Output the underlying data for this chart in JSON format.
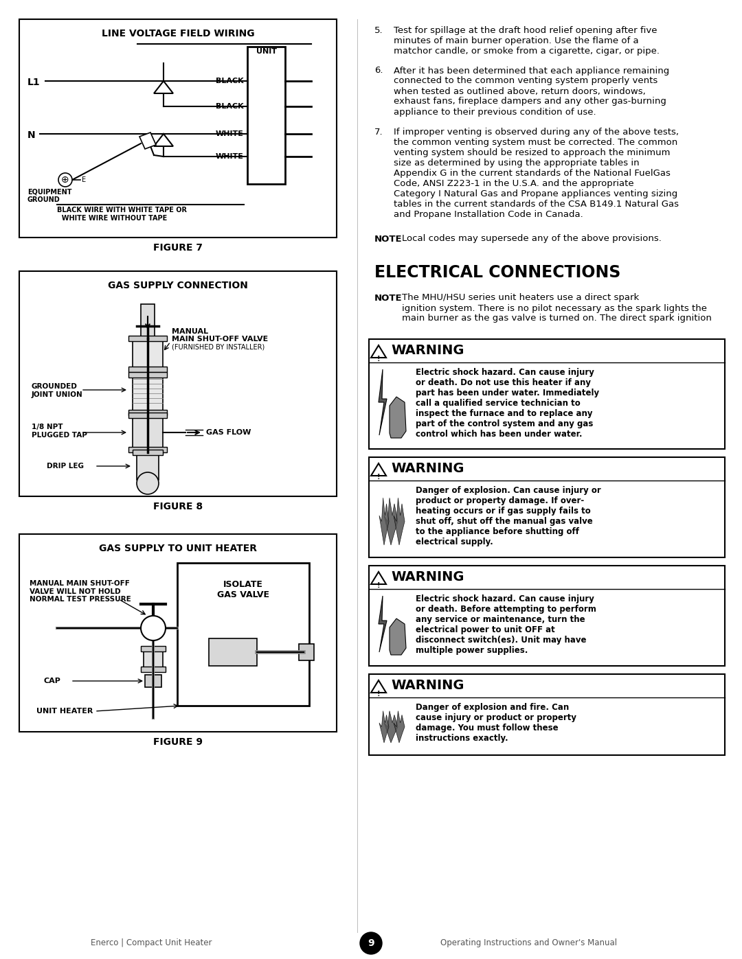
{
  "page_bg": "#ffffff",
  "page_width": 10.8,
  "page_height": 13.97,
  "fig7_title": "LINE VOLTAGE FIELD WIRING",
  "fig7_caption": "FIGURE 7",
  "fig8_title": "GAS SUPPLY CONNECTION",
  "fig8_caption": "FIGURE 8",
  "fig9_title": "GAS SUPPLY TO UNIT HEATER",
  "fig9_caption": "FIGURE 9",
  "electrical_connections_title": "ELECTRICAL CONNECTIONS",
  "footer_left": "Enerco | Compact Unit Heater",
  "footer_page": "9",
  "footer_right": "Operating Instructions and Owner's Manual",
  "items": [
    {
      "num": "5.",
      "text": "Test for spillage at the draft hood relief opening after five\nminutes of main burner operation. Use the flame of a\nmatchor candle, or smoke from a cigarette, cigar, or pipe."
    },
    {
      "num": "6.",
      "text": "After it has been determined that each appliance remaining\nconnected to the common venting system properly vents\nwhen tested as outlined above, return doors, windows,\nexhaust fans, fireplace dampers and any other gas-burning\nappliance to their previous condition of use."
    },
    {
      "num": "7.",
      "text": "If improper venting is observed during any of the above tests,\nthe common venting system must be corrected. The common\nventing system should be resized to approach the minimum\nsize as determined by using the appropriate tables in\nAppendix G in the current standards of the National FuelGas\nCode, ANSI Z223-1 in the U.S.A. and the appropriate\nCategory I Natural Gas and Propane appliances venting sizing\ntables in the current standards of the CSA B149.1 Natural Gas\nand Propane Installation Code in Canada."
    }
  ],
  "warnings": [
    {
      "icon": "hand",
      "text": "Electric shock hazard. Can cause injury\nor death. Do not use this heater if any\npart has been under water. Immediately\ncall a qualified service technician to\ninspect the furnace and to replace any\npart of the control system and any gas\ncontrol which has been under water."
    },
    {
      "icon": "flame",
      "text": "Danger of explosion. Can cause injury or\nproduct or property damage. If over-\nheating occurs or if gas supply fails to\nshut off, shut off the manual gas valve\nto the appliance before shutting off\nelectrical supply."
    },
    {
      "icon": "hand",
      "text": "Electric shock hazard. Can cause injury\nor death. Before attempting to perform\nany service or maintenance, turn the\nelectrical power to unit OFF at\ndisconnect switch(es). Unit may have\nmultiple power supplies."
    },
    {
      "icon": "flame",
      "text": "Danger of explosion and fire. Can\ncause injury or product or property\ndamage. You must follow these\ninstructions exactly."
    }
  ]
}
